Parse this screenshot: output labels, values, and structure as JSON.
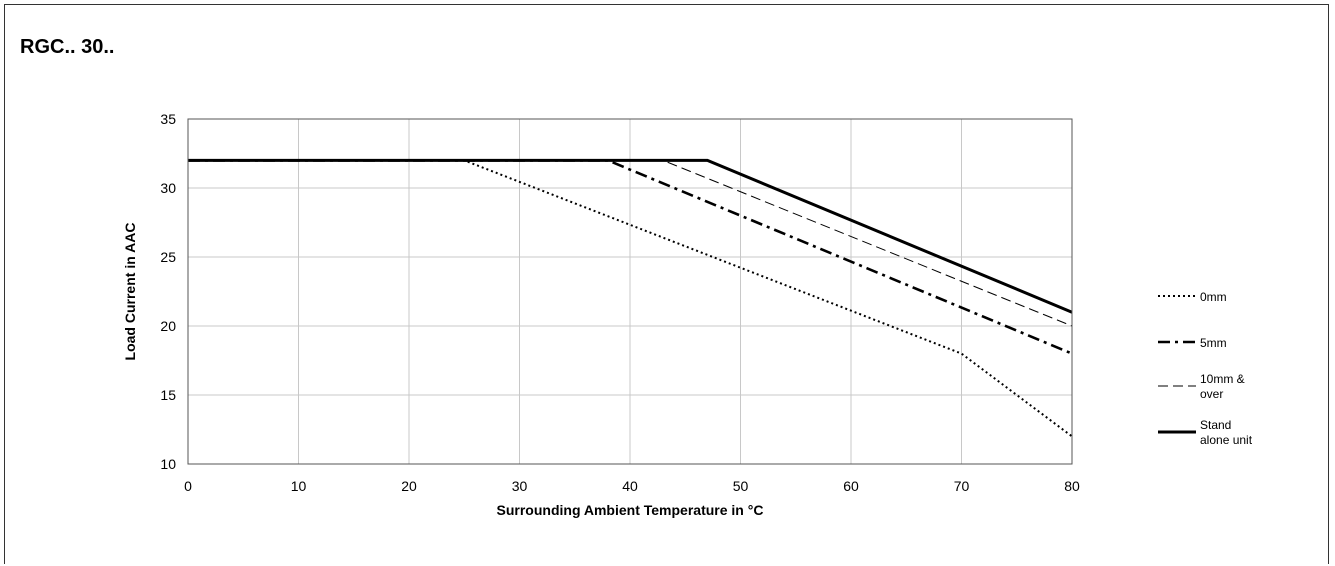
{
  "title": "RGC.. 30..",
  "chart_data": {
    "type": "line",
    "xlabel": "Surrounding Ambient Temperature in °C",
    "ylabel": "Load Current in AAC",
    "xlim": [
      0,
      80
    ],
    "ylim": [
      10,
      35
    ],
    "xticks": [
      0,
      10,
      20,
      30,
      40,
      50,
      60,
      70,
      80
    ],
    "yticks": [
      10,
      15,
      20,
      25,
      30,
      35
    ],
    "grid": true,
    "legend_position": "right",
    "series": [
      {
        "name": "0mm",
        "style": "dotted",
        "color": "#000000",
        "points": [
          [
            0,
            32
          ],
          [
            25,
            32
          ],
          [
            70,
            18
          ],
          [
            80,
            12
          ]
        ]
      },
      {
        "name": "5mm",
        "style": "dashdot",
        "color": "#000000",
        "points": [
          [
            0,
            32
          ],
          [
            38,
            32
          ],
          [
            80,
            18
          ]
        ]
      },
      {
        "name": "10mm & over",
        "style": "dashed",
        "color": "#000000",
        "points": [
          [
            0,
            32
          ],
          [
            43,
            32
          ],
          [
            80,
            20
          ]
        ]
      },
      {
        "name": "Stand alone unit",
        "style": "solid",
        "color": "#000000",
        "points": [
          [
            0,
            32
          ],
          [
            47,
            32
          ],
          [
            80,
            21
          ]
        ]
      }
    ],
    "legend_labels": [
      [
        "0mm"
      ],
      [
        "5mm"
      ],
      [
        "10mm &",
        "over"
      ],
      [
        "Stand",
        "alone unit"
      ]
    ]
  }
}
